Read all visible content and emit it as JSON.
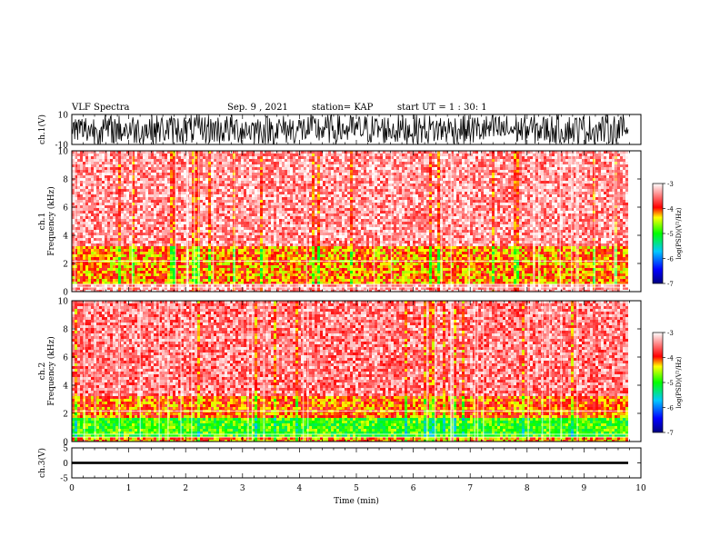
{
  "header": {
    "title": "VLF Spectra",
    "date": "Sep. 9 , 2021",
    "station": "station= KAP",
    "start": "start UT =  1 : 30: 1"
  },
  "chart_data": [
    {
      "type": "line",
      "panel": "ch1-waveform",
      "ylabel": "ch.1(V)",
      "ylim": [
        -10,
        10
      ],
      "yticks": [
        "10",
        "-10"
      ],
      "xlim": [
        0,
        10
      ],
      "description_values": {
        "min": -10,
        "max": 10
      },
      "color": "#000000"
    },
    {
      "type": "heatmap",
      "panel": "ch1-spectrogram",
      "ylabel": "ch.1 Frequency (kHz)",
      "ylim": [
        0,
        10
      ],
      "yticks": [
        "0",
        "2",
        "4",
        "6",
        "8",
        "10"
      ],
      "xlim": [
        0,
        10
      ],
      "data_end_min": 9.83,
      "bands": [
        {
          "f_low": 0,
          "f_high": 0.7,
          "log_psd": -3.3
        },
        {
          "f_low": 0.7,
          "f_high": 3.3,
          "log_psd": -4.2
        },
        {
          "f_low": 3.3,
          "f_high": 10,
          "log_psd": -3.4
        }
      ],
      "colorbar": {
        "label": "log(PSD)(V²/Hz)",
        "ticks": [
          "-3",
          "-4",
          "-5",
          "-6",
          "-7"
        ],
        "range": [
          -7,
          -3
        ]
      }
    },
    {
      "type": "heatmap",
      "panel": "ch2-spectrogram",
      "ylabel": "ch.2 Frequency (kHz)",
      "ylim": [
        0,
        10
      ],
      "yticks": [
        "0",
        "2",
        "4",
        "6",
        "8",
        "10"
      ],
      "xlim": [
        0,
        10
      ],
      "data_end_min": 9.83,
      "bands": [
        {
          "f_low": 0,
          "f_high": 0.5,
          "log_psd": -4.2
        },
        {
          "f_low": 0.5,
          "f_high": 1.8,
          "log_psd": -4.9
        },
        {
          "f_low": 1.8,
          "f_high": 3.3,
          "log_psd": -4.1
        },
        {
          "f_low": 3.3,
          "f_high": 10,
          "log_psd": -3.5
        }
      ],
      "colorbar": {
        "label": "log(PSD)(V²/Hz)",
        "ticks": [
          "-3",
          "-4",
          "-5",
          "-6",
          "-7"
        ],
        "range": [
          -7,
          -3
        ]
      }
    },
    {
      "type": "line",
      "panel": "ch3-waveform",
      "ylabel": "ch.3(V)",
      "ylim": [
        -5,
        5
      ],
      "yticks": [
        "5",
        "0",
        "-5"
      ],
      "xlim": [
        0,
        10
      ],
      "description_values": {
        "min": -0.4,
        "max": 0.4
      },
      "color": "#000000"
    }
  ],
  "xaxis": {
    "label": "Time (min)",
    "ticks": [
      "0",
      "1",
      "2",
      "3",
      "4",
      "5",
      "6",
      "7",
      "8",
      "9",
      "10"
    ]
  }
}
